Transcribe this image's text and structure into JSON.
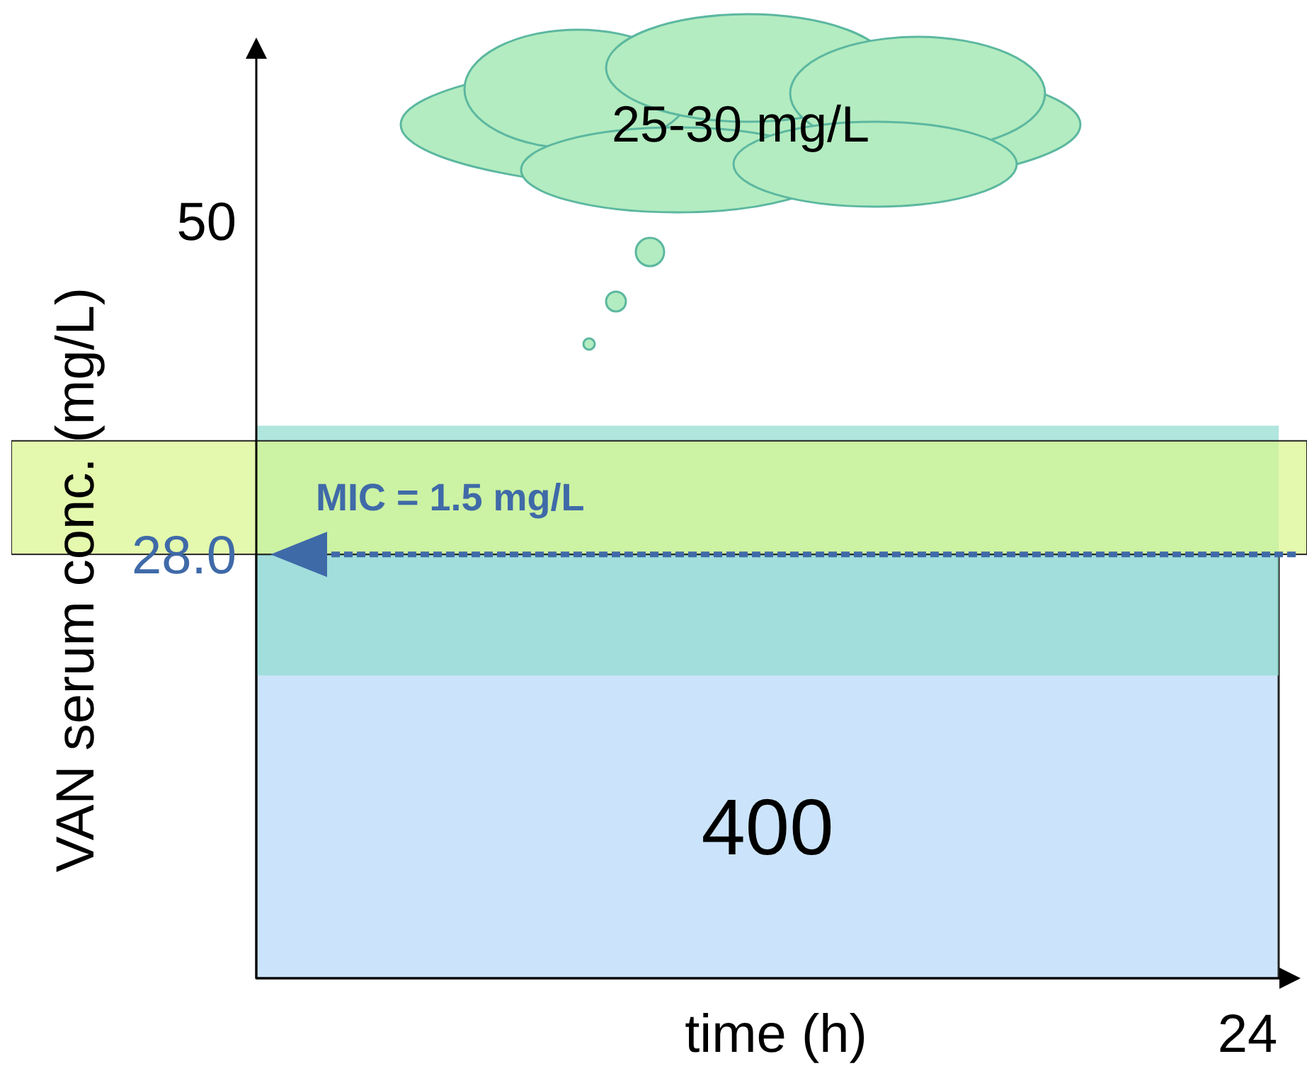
{
  "chart_data": {
    "type": "bar",
    "xlabel": "time (h)",
    "ylabel": "VAN serum conc. (mg/L)",
    "categories": [
      null
    ],
    "values": [
      28
    ],
    "color": "#cce4fb",
    "ylim": [
      0,
      62
    ],
    "yticks": [
      {
        "value": 28,
        "label": "28.0"
      },
      50
    ],
    "bands": [
      {
        "axis": "y",
        "from": 20,
        "to": 36.5,
        "color": "#8fdccf"
      },
      {
        "axis": "y",
        "from": 28,
        "to": 35.5,
        "label": "MIC = 1.5 mg/L",
        "color": "#d9f78a"
      }
    ],
    "ref_lines": [
      {
        "axis": "y",
        "value": 28,
        "color": "#3f6aa8",
        "line_style": "dashed"
      }
    ],
    "annotations": [
      "400",
      "25-30 mg/L",
      "24"
    ],
    "grid": false
  }
}
